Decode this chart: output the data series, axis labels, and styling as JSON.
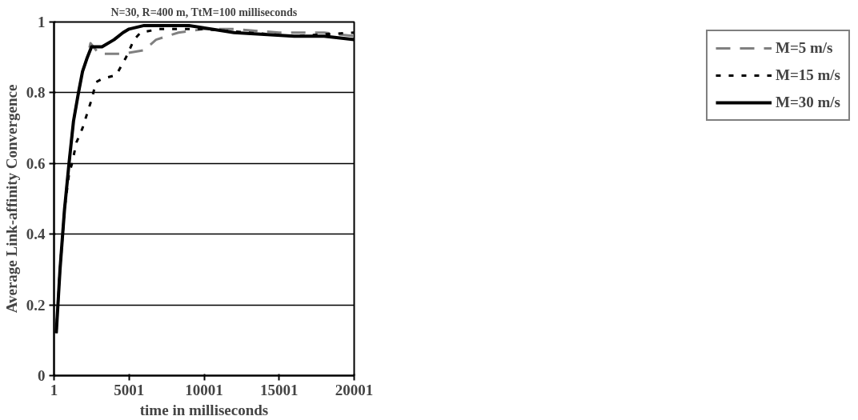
{
  "chart_data": {
    "type": "line",
    "title": "N=30, R=400 m, TtM=100 milliseconds",
    "xlabel": "time in milliseconds",
    "ylabel": "Average Link-affinity Convergence",
    "xlim": [
      1,
      20001
    ],
    "xticks": [
      1,
      5001,
      10001,
      15001,
      20001
    ],
    "ylim": [
      0,
      1
    ],
    "yticks": [
      0,
      0.2,
      0.4,
      0.6,
      0.8,
      1
    ],
    "grid": "y",
    "legend": "right",
    "series": [
      {
        "name": "M=5 m/s",
        "color": "#808080",
        "line_style": "dashed",
        "x": [
          150,
          400,
          700,
          1000,
          1300,
          1630,
          1900,
          2220,
          2430,
          3000,
          4000,
          4590,
          6000,
          6800,
          8290,
          10001,
          12000,
          15000,
          18000,
          20001
        ],
        "values": [
          0.12,
          0.3,
          0.47,
          0.6,
          0.72,
          0.8,
          0.86,
          0.9,
          0.94,
          0.91,
          0.91,
          0.91,
          0.92,
          0.95,
          0.97,
          0.98,
          0.98,
          0.97,
          0.97,
          0.96
        ]
      },
      {
        "name": "M=15 m/s",
        "color": "#000000",
        "line_style": "dotted",
        "x": [
          150,
          400,
          700,
          1000,
          1200,
          1500,
          1900,
          2200,
          2500,
          2800,
          3250,
          4150,
          4800,
          5330,
          5770,
          7000,
          10001,
          13000,
          16000,
          20001
        ],
        "values": [
          0.12,
          0.3,
          0.47,
          0.57,
          0.6,
          0.66,
          0.7,
          0.74,
          0.78,
          0.83,
          0.84,
          0.85,
          0.9,
          0.95,
          0.97,
          0.98,
          0.98,
          0.97,
          0.96,
          0.97
        ]
      },
      {
        "name": "M=30 m/s",
        "color": "#000000",
        "line_style": "solid",
        "x": [
          150,
          400,
          700,
          1000,
          1300,
          1630,
          1900,
          2220,
          2500,
          3200,
          4000,
          4600,
          5000,
          6000,
          9000,
          12000,
          16000,
          18000,
          20001
        ],
        "values": [
          0.12,
          0.3,
          0.47,
          0.6,
          0.72,
          0.8,
          0.86,
          0.9,
          0.93,
          0.93,
          0.95,
          0.97,
          0.98,
          0.99,
          0.99,
          0.97,
          0.96,
          0.96,
          0.95
        ]
      }
    ]
  }
}
